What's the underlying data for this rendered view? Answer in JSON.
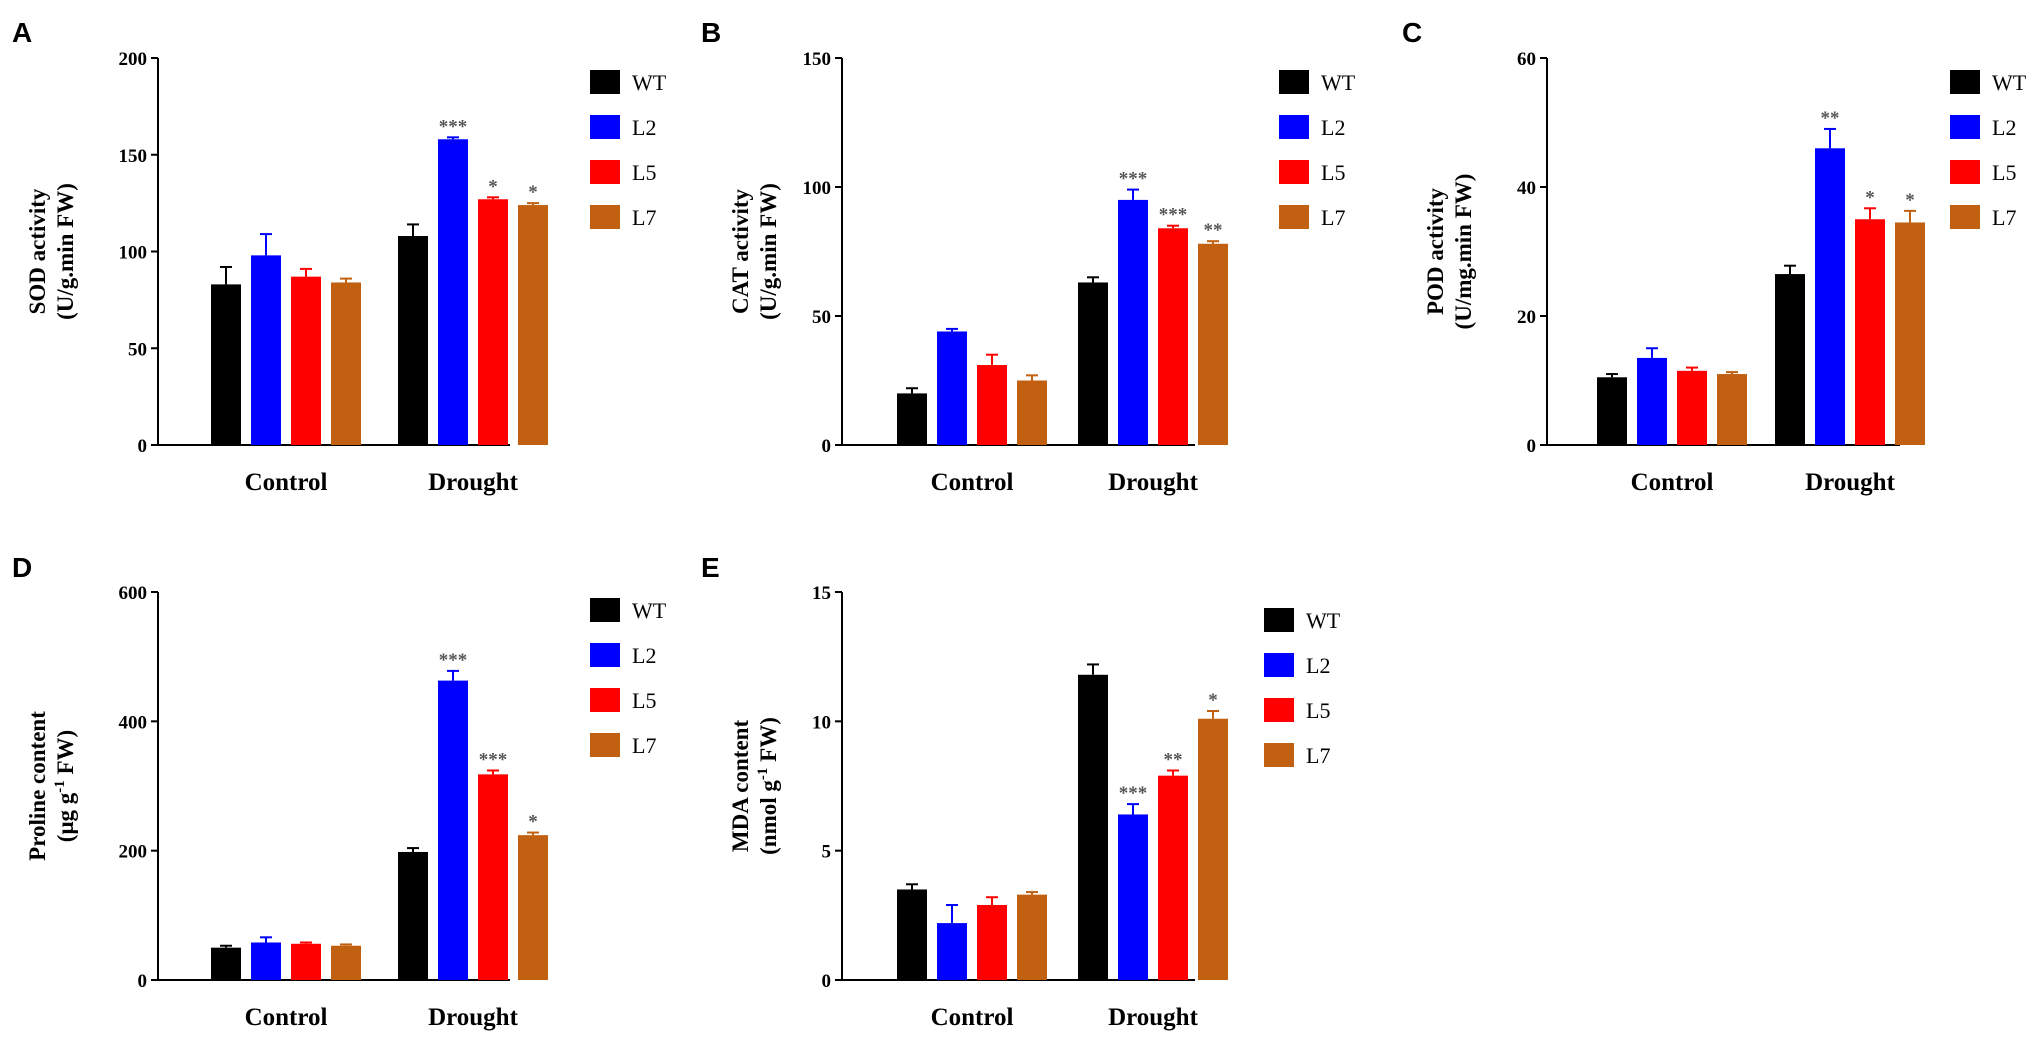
{
  "figure": {
    "categories": [
      "Control",
      "Drought"
    ],
    "legend": [
      {
        "name": "WT",
        "color": "#000000"
      },
      {
        "name": "L2",
        "color": "#0000ff"
      },
      {
        "name": "L5",
        "color": "#ff0000"
      },
      {
        "name": "L7",
        "color": "#c06010"
      }
    ]
  },
  "chart_data": [
    {
      "panel": "A",
      "type": "bar",
      "ylabel": [
        "SOD activity",
        "(U/g.min FW)"
      ],
      "ylim": [
        0,
        200
      ],
      "yticks": [
        0,
        50,
        100,
        150,
        200
      ],
      "categories": [
        "Control",
        "Drought"
      ],
      "series": [
        {
          "name": "WT",
          "values": [
            83,
            108
          ],
          "errors": [
            9,
            6
          ],
          "sig": [
            "",
            ""
          ]
        },
        {
          "name": "L2",
          "values": [
            98,
            158
          ],
          "errors": [
            11,
            1
          ],
          "sig": [
            "",
            "***"
          ]
        },
        {
          "name": "L5",
          "values": [
            87,
            127
          ],
          "errors": [
            4,
            1
          ],
          "sig": [
            "",
            "*"
          ]
        },
        {
          "name": "L7",
          "values": [
            84,
            124
          ],
          "errors": [
            2,
            1
          ],
          "sig": [
            "",
            "*"
          ]
        }
      ]
    },
    {
      "panel": "B",
      "type": "bar",
      "ylabel": [
        "CAT activity",
        "(U/g.min FW)"
      ],
      "ylim": [
        0,
        150
      ],
      "yticks": [
        0,
        50,
        100,
        150
      ],
      "categories": [
        "Control",
        "Drought"
      ],
      "series": [
        {
          "name": "WT",
          "values": [
            20,
            63
          ],
          "errors": [
            2,
            2
          ],
          "sig": [
            "",
            ""
          ]
        },
        {
          "name": "L2",
          "values": [
            44,
            95
          ],
          "errors": [
            1,
            4
          ],
          "sig": [
            "",
            "***"
          ]
        },
        {
          "name": "L5",
          "values": [
            31,
            84
          ],
          "errors": [
            4,
            1
          ],
          "sig": [
            "",
            "***"
          ]
        },
        {
          "name": "L7",
          "values": [
            25,
            78
          ],
          "errors": [
            2,
            1
          ],
          "sig": [
            "",
            "**"
          ]
        }
      ]
    },
    {
      "panel": "C",
      "type": "bar",
      "ylabel": [
        "POD activity",
        "(U/mg.min FW)"
      ],
      "ylim": [
        0,
        60
      ],
      "yticks": [
        0,
        20,
        40,
        60
      ],
      "categories": [
        "Control",
        "Drought"
      ],
      "series": [
        {
          "name": "WT",
          "values": [
            10.5,
            26.5
          ],
          "errors": [
            0.5,
            1.3
          ],
          "sig": [
            "",
            ""
          ]
        },
        {
          "name": "L2",
          "values": [
            13.5,
            46
          ],
          "errors": [
            1.5,
            3
          ],
          "sig": [
            "",
            "**"
          ]
        },
        {
          "name": "L5",
          "values": [
            11.5,
            35
          ],
          "errors": [
            0.5,
            1.7
          ],
          "sig": [
            "",
            "*"
          ]
        },
        {
          "name": "L7",
          "values": [
            11,
            34.5
          ],
          "errors": [
            0.3,
            1.8
          ],
          "sig": [
            "",
            "*"
          ]
        }
      ]
    },
    {
      "panel": "D",
      "type": "bar",
      "ylabel": [
        "Proline content",
        "(μg g",
        "-1",
        " FW)"
      ],
      "ylim": [
        0,
        600
      ],
      "yticks": [
        0,
        200,
        400,
        600
      ],
      "categories": [
        "Control",
        "Drought"
      ],
      "series": [
        {
          "name": "WT",
          "values": [
            50,
            198
          ],
          "errors": [
            3,
            6
          ],
          "sig": [
            "",
            ""
          ]
        },
        {
          "name": "L2",
          "values": [
            58,
            463
          ],
          "errors": [
            8,
            15
          ],
          "sig": [
            "",
            "***"
          ]
        },
        {
          "name": "L5",
          "values": [
            56,
            318
          ],
          "errors": [
            2,
            6
          ],
          "sig": [
            "",
            "***"
          ]
        },
        {
          "name": "L7",
          "values": [
            53,
            224
          ],
          "errors": [
            2,
            4
          ],
          "sig": [
            "",
            "*"
          ]
        }
      ]
    },
    {
      "panel": "E",
      "type": "bar",
      "ylabel": [
        "MDA content",
        "(nmol g",
        "-1",
        " FW)"
      ],
      "ylim": [
        0,
        15
      ],
      "yticks": [
        0,
        5,
        10,
        15
      ],
      "categories": [
        "Control",
        "Drought"
      ],
      "series": [
        {
          "name": "WT",
          "values": [
            3.5,
            11.8
          ],
          "errors": [
            0.2,
            0.4
          ],
          "sig": [
            "",
            ""
          ]
        },
        {
          "name": "L2",
          "values": [
            2.2,
            6.4
          ],
          "errors": [
            0.7,
            0.4
          ],
          "sig": [
            "",
            "***"
          ]
        },
        {
          "name": "L5",
          "values": [
            2.9,
            7.9
          ],
          "errors": [
            0.3,
            0.2
          ],
          "sig": [
            "",
            "**"
          ]
        },
        {
          "name": "L7",
          "values": [
            3.3,
            10.1
          ],
          "errors": [
            0.1,
            0.3
          ],
          "sig": [
            "",
            "*"
          ]
        }
      ]
    }
  ]
}
